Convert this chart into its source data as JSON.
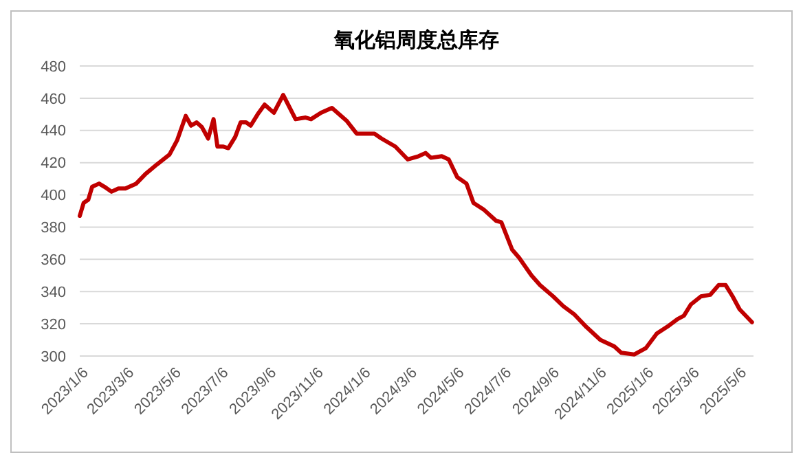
{
  "chart_data": {
    "type": "line",
    "title": "氧化铝周度总库存",
    "x": [
      "2023-01-06",
      "2023-01-11",
      "2023-01-17",
      "2023-01-22",
      "2023-01-31",
      "2023-02-07",
      "2023-02-16",
      "2023-02-25",
      "2023-03-06",
      "2023-03-20",
      "2023-04-01",
      "2023-04-16",
      "2023-05-02",
      "2023-05-12",
      "2023-05-23",
      "2023-05-30",
      "2023-06-06",
      "2023-06-13",
      "2023-06-21",
      "2023-06-28",
      "2023-07-03",
      "2023-07-10",
      "2023-07-17",
      "2023-07-26",
      "2023-08-02",
      "2023-08-09",
      "2023-08-15",
      "2023-08-24",
      "2023-09-02",
      "2023-09-09",
      "2023-09-14",
      "2023-09-26",
      "2023-10-12",
      "2023-10-25",
      "2023-11-01",
      "2023-11-14",
      "2023-11-28",
      "2023-12-17",
      "2023-12-30",
      "2024-01-11",
      "2024-01-22",
      "2024-01-31",
      "2024-02-18",
      "2024-03-05",
      "2024-03-19",
      "2024-03-28",
      "2024-04-04",
      "2024-04-18",
      "2024-04-27",
      "2024-05-08",
      "2024-05-20",
      "2024-05-29",
      "2024-06-11",
      "2024-06-27",
      "2024-07-04",
      "2024-07-18",
      "2024-07-27",
      "2024-08-12",
      "2024-08-23",
      "2024-09-09",
      "2024-09-22",
      "2024-10-06",
      "2024-10-22",
      "2024-11-09",
      "2024-11-27",
      "2024-12-06",
      "2024-12-23",
      "2025-01-07",
      "2025-01-21",
      "2025-02-06",
      "2025-02-17",
      "2025-02-25",
      "2025-03-06",
      "2025-03-19",
      "2025-03-31",
      "2025-04-11",
      "2025-04-20",
      "2025-04-29",
      "2025-05-08",
      "2025-05-24"
    ],
    "series": [
      {
        "color": "#c00000",
        "values": [
          387,
          395,
          397,
          405,
          407,
          405,
          402,
          404,
          404,
          407,
          413,
          419,
          425,
          434,
          449,
          443,
          445,
          442,
          435,
          447,
          430,
          430,
          429,
          436,
          445,
          445,
          443,
          450,
          456,
          453,
          451,
          462,
          447,
          448,
          447,
          451,
          454,
          446,
          438,
          438,
          438,
          435,
          430,
          422,
          424,
          426,
          423,
          424,
          422,
          411,
          407,
          395,
          391,
          384,
          383,
          366,
          361,
          350,
          344,
          337,
          331,
          326,
          318,
          310,
          306,
          302,
          301,
          305,
          314,
          319,
          323,
          325,
          332,
          337,
          338,
          344,
          344,
          337,
          329,
          321
        ]
      }
    ],
    "xlim": [
      "2023-01-06",
      "2025-05-26"
    ],
    "xticks": [
      {
        "value": "2023-01-06",
        "label": "2023/1/6"
      },
      {
        "value": "2023-03-06",
        "label": "2023/3/6"
      },
      {
        "value": "2023-05-06",
        "label": "2023/5/6"
      },
      {
        "value": "2023-07-06",
        "label": "2023/7/6"
      },
      {
        "value": "2023-09-06",
        "label": "2023/9/6"
      },
      {
        "value": "2023-11-06",
        "label": "2023/11/6"
      },
      {
        "value": "2024-01-06",
        "label": "2024/1/6"
      },
      {
        "value": "2024-03-06",
        "label": "2024/3/6"
      },
      {
        "value": "2024-05-06",
        "label": "2024/5/6"
      },
      {
        "value": "2024-07-06",
        "label": "2024/7/6"
      },
      {
        "value": "2024-09-06",
        "label": "2024/9/6"
      },
      {
        "value": "2024-11-06",
        "label": "2024/11/6"
      },
      {
        "value": "2025-01-06",
        "label": "2025/1/6"
      },
      {
        "value": "2025-03-06",
        "label": "2025/3/6"
      },
      {
        "value": "2025-05-06",
        "label": "2025/5/6"
      }
    ],
    "ylim": [
      300,
      480
    ],
    "yticks": [
      300,
      320,
      340,
      360,
      380,
      400,
      420,
      440,
      460,
      480
    ],
    "grid": "y",
    "marker": "none",
    "line_style": "solid"
  }
}
